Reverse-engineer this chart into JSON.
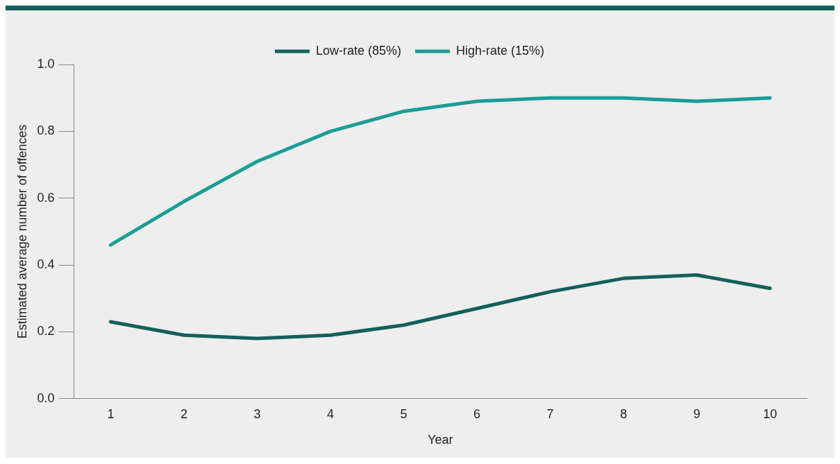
{
  "chart_data": {
    "type": "line",
    "xlabel": "Year",
    "ylabel": "Estimated average number of offences",
    "categories": [
      "1",
      "2",
      "3",
      "4",
      "5",
      "6",
      "7",
      "8",
      "9",
      "10"
    ],
    "series": [
      {
        "name": "Low-rate (85%)",
        "color": "#135f5d",
        "values": [
          0.23,
          0.19,
          0.18,
          0.19,
          0.22,
          0.27,
          0.32,
          0.36,
          0.37,
          0.33
        ]
      },
      {
        "name": "High-rate (15%)",
        "color": "#1b9d97",
        "values": [
          0.46,
          0.59,
          0.71,
          0.8,
          0.86,
          0.89,
          0.9,
          0.9,
          0.89,
          0.9
        ]
      }
    ],
    "ylim": [
      0,
      1
    ],
    "yticks": [
      {
        "value": 0,
        "label": "0.0"
      },
      0.2,
      0.4,
      0.6,
      0.8,
      {
        "value": 1,
        "label": "1.0"
      }
    ],
    "grid": false,
    "legend": "top",
    "marker": "none",
    "line_style": "solid"
  }
}
